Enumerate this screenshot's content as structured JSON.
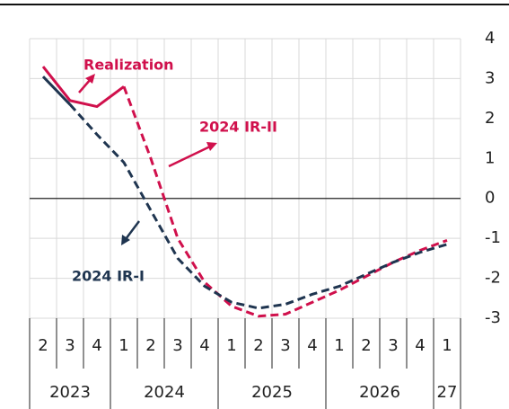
{
  "chart_data": {
    "type": "line",
    "categories": [
      "2",
      "3",
      "4",
      "1",
      "2",
      "3",
      "4",
      "1",
      "2",
      "3",
      "4",
      "1",
      "2",
      "3",
      "4",
      "1"
    ],
    "years": [
      "2023",
      "2024",
      "2025",
      "2026",
      "27"
    ],
    "series": [
      {
        "name": "Realization",
        "color": "#d0104c",
        "dashed": false,
        "values": [
          3.3,
          2.45,
          2.3,
          2.8,
          null,
          null,
          null,
          null,
          null,
          null,
          null,
          null,
          null,
          null,
          null,
          null
        ]
      },
      {
        "name": "2024 IR-II",
        "color": "#d0104c",
        "dashed": true,
        "values": [
          null,
          null,
          null,
          2.8,
          1.0,
          -1.0,
          -2.1,
          -2.7,
          -2.95,
          -2.9,
          -2.6,
          -2.3,
          -1.95,
          -1.6,
          -1.3,
          -1.05
        ]
      },
      {
        "name": "2024 IR-I",
        "color": "#1f3550",
        "dashed": true,
        "dashed_from": 1,
        "values": [
          3.05,
          2.35,
          1.6,
          0.9,
          -0.3,
          -1.5,
          -2.2,
          -2.6,
          -2.75,
          -2.65,
          -2.4,
          -2.2,
          -1.9,
          -1.6,
          -1.35,
          -1.15
        ]
      }
    ],
    "ylim": [
      -3,
      4
    ],
    "yticks": [
      4,
      3,
      2,
      1,
      0,
      -1,
      -2,
      -3
    ],
    "grid": true
  }
}
